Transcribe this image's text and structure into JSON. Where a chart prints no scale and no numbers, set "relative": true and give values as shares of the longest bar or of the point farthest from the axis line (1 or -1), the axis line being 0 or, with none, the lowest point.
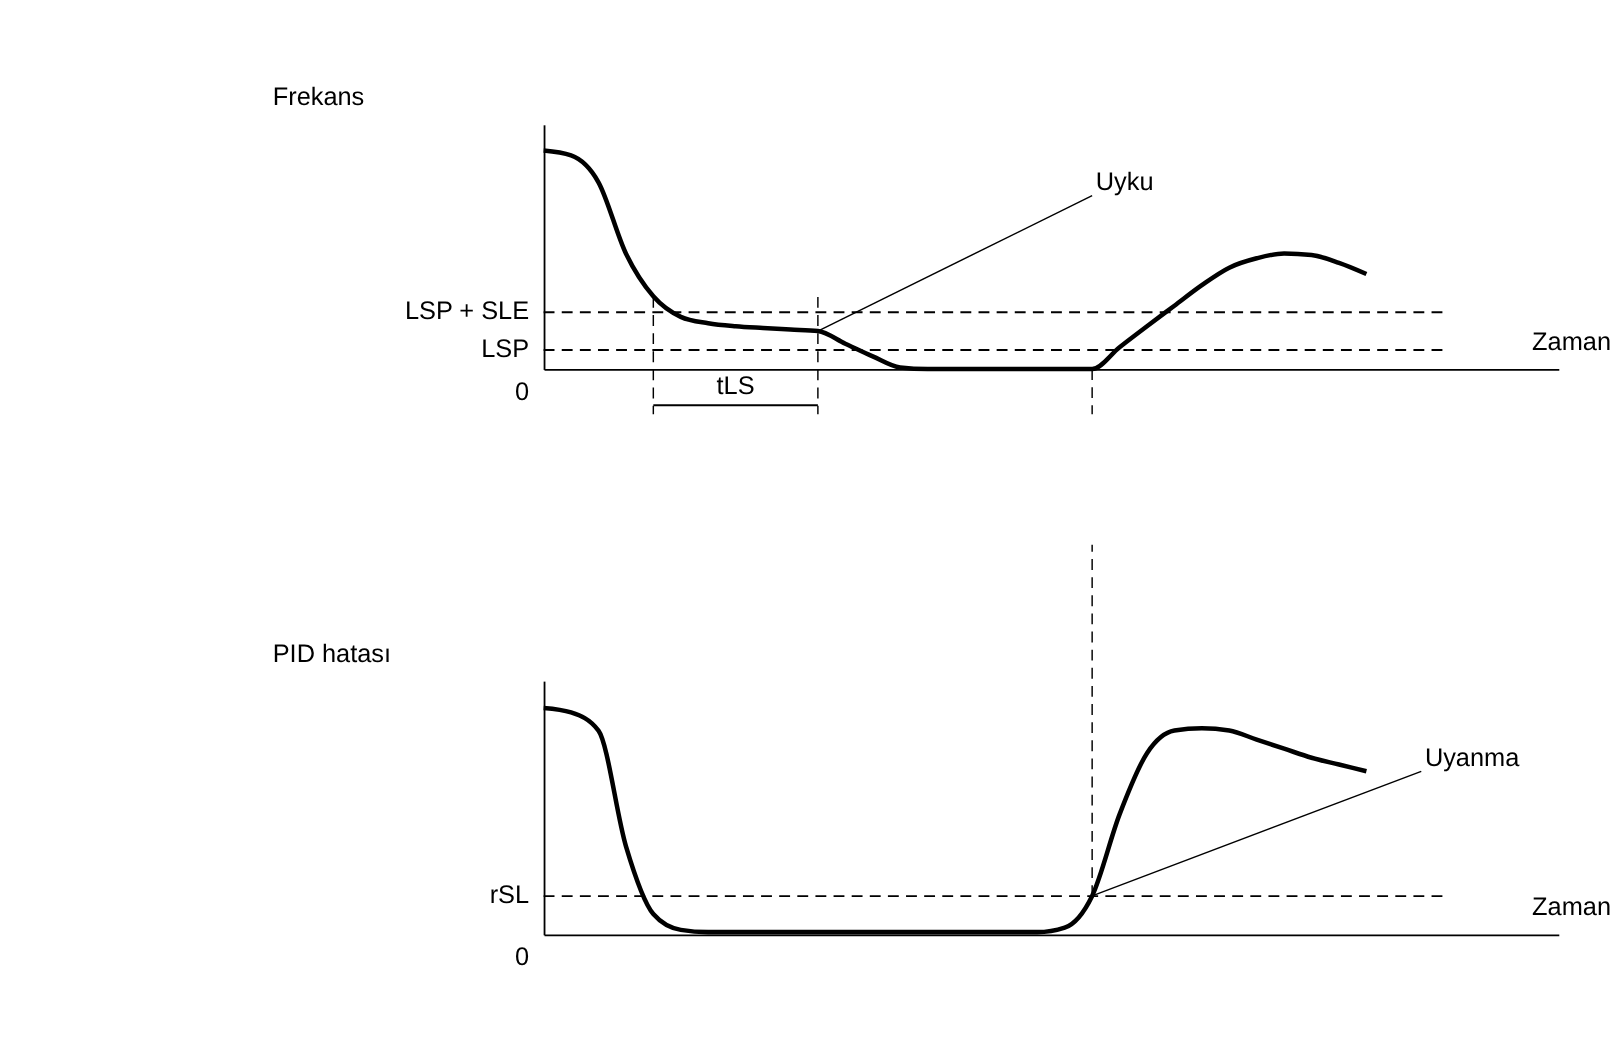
{
  "chart_data": [
    {
      "type": "line",
      "relative": true,
      "ylabel": "Frekans",
      "xlabel": "Zaman",
      "color": "#000000",
      "categories": [
        null,
        null,
        null,
        null,
        null,
        null,
        null,
        null,
        null,
        null,
        null,
        null,
        null,
        null,
        null,
        null,
        null,
        null,
        null,
        null,
        null,
        null,
        null,
        null,
        null,
        null,
        null,
        null,
        null,
        null,
        null,
        null,
        null,
        null,
        null,
        null,
        null,
        null
      ],
      "values": [
        1.0,
        0.978,
        0.855,
        0.529,
        0.333,
        0.239,
        0.21,
        0.196,
        0.188,
        0.181,
        0.174,
        0.116,
        0.058,
        0.007,
        0,
        0,
        0,
        0,
        0,
        0,
        0,
        0.1,
        0.196,
        0.29,
        0.384,
        0.464,
        0.507,
        0.529,
        0.522,
        0.486,
        0.435,
        null,
        null,
        null,
        null,
        null,
        null,
        null
      ],
      "ref_lines": [
        {
          "axis": "y",
          "value": 0.26,
          "label": "LSP + SLE",
          "line_style": "dashed"
        },
        {
          "axis": "y",
          "value": 0.087,
          "label": "LSP",
          "line_style": "dashed"
        }
      ],
      "annotations": [
        "0",
        "Uyku",
        "tLS"
      ]
    },
    {
      "type": "line",
      "relative": true,
      "ylabel": "PID hatası",
      "xlabel": "Zaman",
      "color": "#000000",
      "categories": [
        null,
        null,
        null,
        null,
        null,
        null,
        null,
        null,
        null,
        null,
        null,
        null,
        null,
        null,
        null,
        null,
        null,
        null,
        null,
        null,
        null,
        null,
        null,
        null,
        null,
        null,
        null,
        null,
        null,
        null,
        null,
        null,
        null,
        null,
        null,
        null,
        null,
        null
      ],
      "values": [
        1.0,
        0.98,
        0.9,
        0.39,
        0.09,
        0.02,
        0.01,
        0.01,
        0.01,
        0.01,
        0.01,
        0.01,
        0.01,
        0.01,
        0.01,
        0.01,
        0.01,
        0.01,
        0.01,
        0.03,
        0.17,
        0.53,
        0.8,
        0.9,
        0.91,
        0.9,
        0.86,
        0.82,
        0.78,
        0.75,
        0.72,
        null,
        null,
        null,
        null,
        null,
        null,
        null
      ],
      "ref_lines": [
        {
          "axis": "y",
          "value": 0.169,
          "label": "rSL",
          "line_style": "dashed"
        }
      ],
      "annotations": [
        "0",
        "Uyanma"
      ]
    }
  ]
}
